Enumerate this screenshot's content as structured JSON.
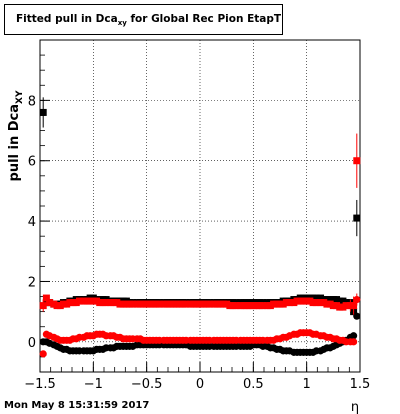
{
  "title": {
    "main": "Fitted pull in Dca",
    "subscript": "xy",
    "rest": " for Global Rec Pion EtapT"
  },
  "timestamp": "Mon May  8 15:31:59 2017",
  "colors": {
    "black_series": "#000000",
    "red_series": "#ff0000",
    "frame": "#000000"
  },
  "chart_data": {
    "type": "scatter",
    "title": "Fitted pull in Dca_xy for Global Rec Pion EtapT",
    "xlabel": "η",
    "ylabel": "pull in Dca_XY",
    "ylabel_main": "pull in Dca",
    "ylabel_sub": "XY",
    "xlim": [
      -1.5,
      1.5
    ],
    "ylim": [
      -1,
      10
    ],
    "xticks": [
      -1.5,
      -1,
      -0.5,
      0,
      0.5,
      1,
      1.5
    ],
    "xtick_labels": [
      "−1.5",
      "−1",
      "−0.5",
      "0",
      "0.5",
      "1",
      "1.5"
    ],
    "yticks": [
      0,
      2,
      4,
      6,
      8
    ],
    "ytick_labels": [
      "0",
      "2",
      "4",
      "6",
      "8"
    ],
    "grid": true,
    "series": [
      {
        "color": "black",
        "marker": "square",
        "x": [
          -1.47,
          -1.44,
          -1.41,
          -1.37,
          -1.34,
          -1.31,
          -1.28,
          -1.25,
          -1.22,
          -1.19,
          -1.16,
          -1.13,
          -1.09,
          -1.06,
          -1.03,
          -1.0,
          -0.97,
          -0.94,
          -0.91,
          -0.88,
          -0.84,
          -0.81,
          -0.78,
          -0.75,
          -0.72,
          -0.69,
          -0.66,
          -0.63,
          -0.59,
          -0.56,
          -0.53,
          -0.5,
          -0.47,
          -0.44,
          -0.41,
          -0.38,
          -0.34,
          -0.31,
          -0.28,
          -0.25,
          -0.22,
          -0.19,
          -0.16,
          -0.13,
          -0.09,
          -0.06,
          -0.03,
          0.0,
          0.03,
          0.06,
          0.09,
          0.13,
          0.16,
          0.19,
          0.22,
          0.25,
          0.28,
          0.31,
          0.34,
          0.38,
          0.41,
          0.44,
          0.47,
          0.5,
          0.53,
          0.56,
          0.59,
          0.63,
          0.66,
          0.69,
          0.72,
          0.75,
          0.78,
          0.81,
          0.84,
          0.88,
          0.91,
          0.94,
          0.97,
          1.0,
          1.03,
          1.06,
          1.09,
          1.13,
          1.16,
          1.19,
          1.22,
          1.25,
          1.28,
          1.31,
          1.34,
          1.37,
          1.41,
          1.44,
          1.47
        ],
        "values": [
          7.6,
          1.3,
          1.3,
          1.25,
          1.25,
          1.25,
          1.3,
          1.3,
          1.35,
          1.35,
          1.4,
          1.4,
          1.4,
          1.4,
          1.45,
          1.45,
          1.4,
          1.4,
          1.4,
          1.4,
          1.35,
          1.35,
          1.35,
          1.35,
          1.35,
          1.35,
          1.3,
          1.3,
          1.3,
          1.3,
          1.3,
          1.3,
          1.3,
          1.3,
          1.3,
          1.3,
          1.3,
          1.3,
          1.3,
          1.3,
          1.3,
          1.3,
          1.3,
          1.3,
          1.3,
          1.3,
          1.3,
          1.3,
          1.3,
          1.3,
          1.3,
          1.3,
          1.3,
          1.3,
          1.3,
          1.3,
          1.3,
          1.3,
          1.3,
          1.3,
          1.3,
          1.3,
          1.3,
          1.3,
          1.3,
          1.3,
          1.3,
          1.3,
          1.3,
          1.3,
          1.3,
          1.3,
          1.35,
          1.35,
          1.35,
          1.4,
          1.4,
          1.45,
          1.45,
          1.45,
          1.45,
          1.45,
          1.45,
          1.45,
          1.4,
          1.4,
          1.4,
          1.4,
          1.4,
          1.35,
          1.35,
          1.3,
          1.3,
          1.0,
          4.1
        ],
        "errors": [
          0.5,
          0.05,
          0.05,
          0.05,
          0.05,
          0.05,
          0.05,
          0.05,
          0.05,
          0.05,
          0.05,
          0.05,
          0.05,
          0.05,
          0.05,
          0.05,
          0.05,
          0.05,
          0.05,
          0.05,
          0.05,
          0.05,
          0.05,
          0.05,
          0.05,
          0.05,
          0.05,
          0.05,
          0.05,
          0.05,
          0.05,
          0.05,
          0.05,
          0.05,
          0.05,
          0.05,
          0.05,
          0.05,
          0.05,
          0.05,
          0.05,
          0.05,
          0.05,
          0.05,
          0.05,
          0.05,
          0.05,
          0.05,
          0.05,
          0.05,
          0.05,
          0.05,
          0.05,
          0.05,
          0.05,
          0.05,
          0.05,
          0.05,
          0.05,
          0.05,
          0.05,
          0.05,
          0.05,
          0.05,
          0.05,
          0.05,
          0.05,
          0.05,
          0.05,
          0.05,
          0.05,
          0.05,
          0.05,
          0.05,
          0.05,
          0.05,
          0.05,
          0.05,
          0.05,
          0.05,
          0.05,
          0.05,
          0.05,
          0.05,
          0.05,
          0.05,
          0.05,
          0.05,
          0.05,
          0.05,
          0.05,
          0.05,
          0.05,
          0.1,
          0.6
        ]
      },
      {
        "color": "red",
        "marker": "square",
        "x": [
          -1.47,
          -1.44,
          -1.41,
          -1.37,
          -1.34,
          -1.31,
          -1.28,
          -1.25,
          -1.22,
          -1.19,
          -1.16,
          -1.13,
          -1.09,
          -1.06,
          -1.03,
          -1.0,
          -0.97,
          -0.94,
          -0.91,
          -0.88,
          -0.84,
          -0.81,
          -0.78,
          -0.75,
          -0.72,
          -0.69,
          -0.66,
          -0.63,
          -0.59,
          -0.56,
          -0.53,
          -0.5,
          -0.47,
          -0.44,
          -0.41,
          -0.38,
          -0.34,
          -0.31,
          -0.28,
          -0.25,
          -0.22,
          -0.19,
          -0.16,
          -0.13,
          -0.09,
          -0.06,
          -0.03,
          0.0,
          0.03,
          0.06,
          0.09,
          0.13,
          0.16,
          0.19,
          0.22,
          0.25,
          0.28,
          0.31,
          0.34,
          0.38,
          0.41,
          0.44,
          0.47,
          0.5,
          0.53,
          0.56,
          0.59,
          0.63,
          0.66,
          0.69,
          0.72,
          0.75,
          0.78,
          0.81,
          0.84,
          0.88,
          0.91,
          0.94,
          0.97,
          1.0,
          1.03,
          1.06,
          1.09,
          1.13,
          1.16,
          1.19,
          1.22,
          1.25,
          1.28,
          1.31,
          1.34,
          1.37,
          1.41,
          1.44,
          1.47
        ],
        "values": [
          1.2,
          1.45,
          1.3,
          1.25,
          1.2,
          1.2,
          1.25,
          1.25,
          1.3,
          1.3,
          1.3,
          1.35,
          1.35,
          1.35,
          1.35,
          1.35,
          1.35,
          1.3,
          1.3,
          1.3,
          1.3,
          1.3,
          1.3,
          1.25,
          1.25,
          1.25,
          1.25,
          1.25,
          1.25,
          1.25,
          1.25,
          1.25,
          1.25,
          1.25,
          1.25,
          1.25,
          1.25,
          1.25,
          1.25,
          1.25,
          1.25,
          1.25,
          1.25,
          1.25,
          1.25,
          1.25,
          1.25,
          1.25,
          1.25,
          1.25,
          1.25,
          1.25,
          1.25,
          1.25,
          1.25,
          1.25,
          1.2,
          1.2,
          1.2,
          1.2,
          1.2,
          1.2,
          1.2,
          1.2,
          1.2,
          1.2,
          1.2,
          1.2,
          1.2,
          1.25,
          1.25,
          1.25,
          1.25,
          1.3,
          1.3,
          1.3,
          1.35,
          1.35,
          1.35,
          1.35,
          1.35,
          1.3,
          1.3,
          1.3,
          1.3,
          1.25,
          1.25,
          1.2,
          1.2,
          1.15,
          1.15,
          1.2,
          1.2,
          1.2,
          6.0
        ],
        "errors": [
          0.2,
          0.05,
          0.05,
          0.05,
          0.05,
          0.05,
          0.05,
          0.05,
          0.05,
          0.05,
          0.05,
          0.05,
          0.05,
          0.05,
          0.05,
          0.05,
          0.05,
          0.05,
          0.05,
          0.05,
          0.05,
          0.05,
          0.05,
          0.05,
          0.05,
          0.05,
          0.05,
          0.05,
          0.05,
          0.05,
          0.05,
          0.05,
          0.05,
          0.05,
          0.05,
          0.05,
          0.05,
          0.05,
          0.05,
          0.05,
          0.05,
          0.05,
          0.05,
          0.05,
          0.05,
          0.05,
          0.05,
          0.05,
          0.05,
          0.05,
          0.05,
          0.05,
          0.05,
          0.05,
          0.05,
          0.05,
          0.05,
          0.05,
          0.05,
          0.05,
          0.05,
          0.05,
          0.05,
          0.05,
          0.05,
          0.05,
          0.05,
          0.05,
          0.05,
          0.05,
          0.05,
          0.05,
          0.05,
          0.05,
          0.05,
          0.05,
          0.05,
          0.05,
          0.05,
          0.05,
          0.05,
          0.05,
          0.05,
          0.05,
          0.05,
          0.05,
          0.05,
          0.05,
          0.05,
          0.05,
          0.05,
          0.05,
          0.2,
          0.3,
          0.9
        ]
      },
      {
        "color": "black",
        "marker": "circle",
        "x": [
          -1.47,
          -1.44,
          -1.41,
          -1.37,
          -1.34,
          -1.31,
          -1.28,
          -1.25,
          -1.22,
          -1.19,
          -1.16,
          -1.13,
          -1.09,
          -1.06,
          -1.03,
          -1.0,
          -0.97,
          -0.94,
          -0.91,
          -0.88,
          -0.84,
          -0.81,
          -0.78,
          -0.75,
          -0.72,
          -0.69,
          -0.66,
          -0.63,
          -0.59,
          -0.56,
          -0.53,
          -0.5,
          -0.47,
          -0.44,
          -0.41,
          -0.38,
          -0.34,
          -0.31,
          -0.28,
          -0.25,
          -0.22,
          -0.19,
          -0.16,
          -0.13,
          -0.09,
          -0.06,
          -0.03,
          0.0,
          0.03,
          0.06,
          0.09,
          0.13,
          0.16,
          0.19,
          0.22,
          0.25,
          0.28,
          0.31,
          0.34,
          0.38,
          0.41,
          0.44,
          0.47,
          0.5,
          0.53,
          0.56,
          0.59,
          0.63,
          0.66,
          0.69,
          0.72,
          0.75,
          0.78,
          0.81,
          0.84,
          0.88,
          0.91,
          0.94,
          0.97,
          1.0,
          1.03,
          1.06,
          1.09,
          1.13,
          1.16,
          1.19,
          1.22,
          1.25,
          1.28,
          1.31,
          1.34,
          1.37,
          1.41,
          1.44,
          1.47
        ],
        "values": [
          0.0,
          0.0,
          -0.05,
          -0.1,
          -0.15,
          -0.2,
          -0.25,
          -0.25,
          -0.3,
          -0.3,
          -0.3,
          -0.3,
          -0.3,
          -0.3,
          -0.3,
          -0.3,
          -0.25,
          -0.25,
          -0.25,
          -0.2,
          -0.2,
          -0.2,
          -0.15,
          -0.15,
          -0.15,
          -0.15,
          -0.15,
          -0.15,
          -0.1,
          -0.1,
          -0.1,
          -0.1,
          -0.1,
          -0.1,
          -0.1,
          -0.1,
          -0.1,
          -0.1,
          -0.1,
          -0.1,
          -0.1,
          -0.1,
          -0.1,
          -0.1,
          -0.15,
          -0.15,
          -0.15,
          -0.15,
          -0.15,
          -0.15,
          -0.15,
          -0.15,
          -0.15,
          -0.15,
          -0.15,
          -0.15,
          -0.15,
          -0.15,
          -0.15,
          -0.15,
          -0.15,
          -0.15,
          -0.15,
          -0.1,
          -0.1,
          -0.1,
          -0.15,
          -0.15,
          -0.2,
          -0.2,
          -0.25,
          -0.25,
          -0.3,
          -0.3,
          -0.3,
          -0.35,
          -0.35,
          -0.35,
          -0.35,
          -0.35,
          -0.35,
          -0.35,
          -0.3,
          -0.3,
          -0.25,
          -0.2,
          -0.2,
          -0.15,
          -0.1,
          -0.05,
          0.0,
          0.05,
          0.15,
          0.2,
          0.85
        ],
        "errors": [
          0.05,
          0.05,
          0.05,
          0.05,
          0.05,
          0.05,
          0.05,
          0.05,
          0.05,
          0.05,
          0.05,
          0.05,
          0.05,
          0.05,
          0.05,
          0.05,
          0.05,
          0.05,
          0.05,
          0.05,
          0.05,
          0.05,
          0.05,
          0.05,
          0.05,
          0.05,
          0.05,
          0.05,
          0.05,
          0.05,
          0.05,
          0.05,
          0.05,
          0.05,
          0.05,
          0.05,
          0.05,
          0.05,
          0.05,
          0.05,
          0.05,
          0.05,
          0.05,
          0.05,
          0.05,
          0.05,
          0.05,
          0.05,
          0.05,
          0.05,
          0.05,
          0.05,
          0.05,
          0.05,
          0.05,
          0.05,
          0.05,
          0.05,
          0.05,
          0.05,
          0.05,
          0.05,
          0.05,
          0.05,
          0.05,
          0.05,
          0.05,
          0.05,
          0.05,
          0.05,
          0.05,
          0.05,
          0.05,
          0.05,
          0.05,
          0.05,
          0.05,
          0.05,
          0.05,
          0.05,
          0.05,
          0.05,
          0.05,
          0.05,
          0.05,
          0.05,
          0.05,
          0.05,
          0.05,
          0.05,
          0.05,
          0.05,
          0.05,
          0.05,
          0.05
        ]
      },
      {
        "color": "red",
        "marker": "circle",
        "x": [
          -1.47,
          -1.44,
          -1.41,
          -1.37,
          -1.34,
          -1.31,
          -1.28,
          -1.25,
          -1.22,
          -1.19,
          -1.16,
          -1.13,
          -1.09,
          -1.06,
          -1.03,
          -1.0,
          -0.97,
          -0.94,
          -0.91,
          -0.88,
          -0.84,
          -0.81,
          -0.78,
          -0.75,
          -0.72,
          -0.69,
          -0.66,
          -0.63,
          -0.59,
          -0.56,
          -0.53,
          -0.5,
          -0.47,
          -0.44,
          -0.41,
          -0.38,
          -0.34,
          -0.31,
          -0.28,
          -0.25,
          -0.22,
          -0.19,
          -0.16,
          -0.13,
          -0.09,
          -0.06,
          -0.03,
          0.0,
          0.03,
          0.06,
          0.09,
          0.13,
          0.16,
          0.19,
          0.22,
          0.25,
          0.28,
          0.31,
          0.34,
          0.38,
          0.41,
          0.44,
          0.47,
          0.5,
          0.53,
          0.56,
          0.59,
          0.63,
          0.66,
          0.69,
          0.72,
          0.75,
          0.78,
          0.81,
          0.84,
          0.88,
          0.91,
          0.94,
          0.97,
          1.0,
          1.03,
          1.06,
          1.09,
          1.13,
          1.16,
          1.19,
          1.22,
          1.25,
          1.28,
          1.31,
          1.34,
          1.37,
          1.41,
          1.44,
          1.47
        ],
        "values": [
          -0.4,
          0.25,
          0.2,
          0.15,
          0.1,
          0.05,
          0.05,
          0.05,
          0.05,
          0.1,
          0.1,
          0.15,
          0.15,
          0.2,
          0.2,
          0.2,
          0.25,
          0.25,
          0.25,
          0.2,
          0.2,
          0.2,
          0.15,
          0.15,
          0.1,
          0.1,
          0.1,
          0.1,
          0.1,
          0.1,
          0.05,
          0.05,
          0.05,
          0.05,
          0.05,
          0.05,
          0.05,
          0.05,
          0.05,
          0.05,
          0.05,
          0.05,
          0.05,
          0.05,
          0.05,
          0.05,
          0.05,
          0.05,
          0.05,
          0.05,
          0.05,
          0.05,
          0.05,
          0.05,
          0.05,
          0.05,
          0.05,
          0.05,
          0.05,
          0.05,
          0.05,
          0.05,
          0.05,
          0.05,
          0.05,
          0.05,
          0.05,
          0.05,
          0.05,
          0.05,
          0.1,
          0.1,
          0.15,
          0.15,
          0.2,
          0.25,
          0.25,
          0.3,
          0.3,
          0.3,
          0.3,
          0.25,
          0.25,
          0.2,
          0.2,
          0.15,
          0.15,
          0.1,
          0.1,
          0.05,
          0.05,
          0.0,
          0.0,
          0.0,
          1.4
        ],
        "errors": [
          0.1,
          0.05,
          0.05,
          0.05,
          0.05,
          0.05,
          0.05,
          0.05,
          0.05,
          0.05,
          0.05,
          0.05,
          0.05,
          0.05,
          0.05,
          0.05,
          0.05,
          0.05,
          0.05,
          0.05,
          0.05,
          0.05,
          0.05,
          0.05,
          0.05,
          0.05,
          0.05,
          0.05,
          0.05,
          0.05,
          0.05,
          0.05,
          0.05,
          0.05,
          0.05,
          0.05,
          0.05,
          0.05,
          0.05,
          0.05,
          0.05,
          0.05,
          0.05,
          0.05,
          0.05,
          0.05,
          0.05,
          0.05,
          0.05,
          0.05,
          0.05,
          0.05,
          0.05,
          0.05,
          0.05,
          0.05,
          0.05,
          0.05,
          0.05,
          0.05,
          0.05,
          0.05,
          0.05,
          0.05,
          0.05,
          0.05,
          0.05,
          0.05,
          0.05,
          0.05,
          0.05,
          0.05,
          0.05,
          0.05,
          0.05,
          0.05,
          0.05,
          0.05,
          0.05,
          0.05,
          0.05,
          0.05,
          0.05,
          0.05,
          0.05,
          0.05,
          0.05,
          0.05,
          0.05,
          0.05,
          0.05,
          0.05,
          0.05,
          0.05,
          0.2
        ]
      }
    ]
  }
}
